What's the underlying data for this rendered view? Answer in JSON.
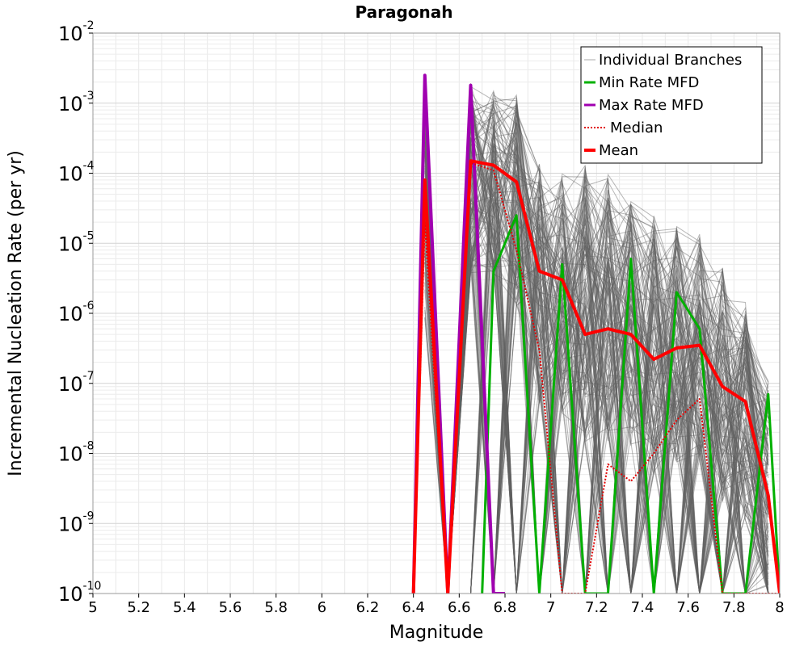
{
  "chart_data": {
    "type": "line",
    "title": "Paragonah",
    "xlabel": "Magnitude",
    "ylabel": "Incremental Nucleation Rate (per yr)",
    "xlim": [
      5,
      8
    ],
    "ylim": [
      1e-10,
      0.01
    ],
    "yscale": "log",
    "grid": true,
    "legend_position": "top-right",
    "xticks": [
      "5",
      "5.2",
      "5.4",
      "5.6",
      "5.8",
      "6",
      "6.2",
      "6.4",
      "6.6",
      "6.8",
      "7",
      "7.2",
      "7.4",
      "7.6",
      "7.8",
      "8"
    ],
    "yticks": [
      {
        "base": "10",
        "exp": "-10"
      },
      {
        "base": "10",
        "exp": "-9"
      },
      {
        "base": "10",
        "exp": "-8"
      },
      {
        "base": "10",
        "exp": "-7"
      },
      {
        "base": "10",
        "exp": "-6"
      },
      {
        "base": "10",
        "exp": "-5"
      },
      {
        "base": "10",
        "exp": "-4"
      },
      {
        "base": "10",
        "exp": "-3"
      },
      {
        "base": "10",
        "exp": "-2"
      }
    ],
    "legend": [
      {
        "label": "Individual Branches",
        "color": "#aaaaaa",
        "style": "solid-thin"
      },
      {
        "label": "Min Rate MFD",
        "color": "#00b000",
        "style": "solid"
      },
      {
        "label": "Max Rate MFD",
        "color": "#a000b0",
        "style": "solid"
      },
      {
        "label": "Median",
        "color": "#e00000",
        "style": "dotted"
      },
      {
        "label": "Mean",
        "color": "#ff0000",
        "style": "solid-thick"
      }
    ],
    "series": [
      {
        "name": "Min Rate MFD",
        "color": "#00b000",
        "x": [
          6.75,
          6.85,
          6.95,
          7.05,
          7.15,
          7.25,
          7.35,
          7.45,
          7.55,
          7.65,
          7.75,
          7.85,
          7.95
        ],
        "values": [
          4e-06,
          2.5e-05,
          1e-10,
          5e-06,
          1e-10,
          1e-10,
          6e-06,
          1e-10,
          2e-06,
          6e-07,
          1e-10,
          1e-10,
          7e-08
        ]
      },
      {
        "name": "Max Rate MFD",
        "color": "#a000b0",
        "x": [
          6.45,
          6.55,
          6.65,
          6.75
        ],
        "values": [
          0.0025,
          1e-10,
          0.0018,
          1e-10
        ]
      },
      {
        "name": "Median",
        "color": "#e00000",
        "x": [
          6.45,
          6.55,
          6.65,
          6.75,
          6.85,
          6.95,
          7.05,
          7.15,
          7.25,
          7.35,
          7.45,
          7.55,
          7.65,
          7.75,
          7.85,
          7.95
        ],
        "values": [
          2e-05,
          1e-10,
          0.00014,
          0.00011,
          8e-06,
          3e-07,
          1e-10,
          1e-10,
          7e-09,
          4e-09,
          1e-08,
          3e-08,
          6e-08,
          1e-10,
          1e-10,
          1e-10
        ]
      },
      {
        "name": "Mean",
        "color": "#ff0000",
        "x": [
          6.45,
          6.55,
          6.65,
          6.75,
          6.85,
          6.95,
          7.05,
          7.15,
          7.25,
          7.35,
          7.45,
          7.55,
          7.65,
          7.75,
          7.85,
          7.95
        ],
        "values": [
          8e-05,
          1e-10,
          0.00015,
          0.00013,
          7.5e-05,
          4e-06,
          3e-06,
          5e-07,
          6e-07,
          5e-07,
          2.2e-07,
          3.2e-07,
          3.5e-07,
          9e-08,
          5.5e-08,
          2.5e-09
        ]
      }
    ],
    "branches": {
      "name": "Individual Branches",
      "color": "#606060",
      "count": 160,
      "x": [
        6.45,
        6.55,
        6.65,
        6.75,
        6.85,
        6.95,
        7.05,
        7.15,
        7.25,
        7.35,
        7.45,
        7.55,
        7.65,
        7.75,
        7.85,
        7.95
      ],
      "envelope_high": [
        0.0025,
        1e-10,
        0.002,
        0.0015,
        0.0014,
        0.00015,
        0.00012,
        0.00013,
        0.0001,
        5e-05,
        2.5e-05,
        2e-05,
        1.5e-05,
        5e-06,
        1.5e-06,
        1.2e-07
      ],
      "typical_level": [
        3e-05,
        1e-10,
        0.00015,
        0.00012,
        5e-05,
        2e-06,
        1.5e-06,
        5e-07,
        6e-07,
        5e-07,
        2e-07,
        3e-07,
        3e-07,
        8e-08,
        4e-08,
        3e-09
      ]
    }
  }
}
